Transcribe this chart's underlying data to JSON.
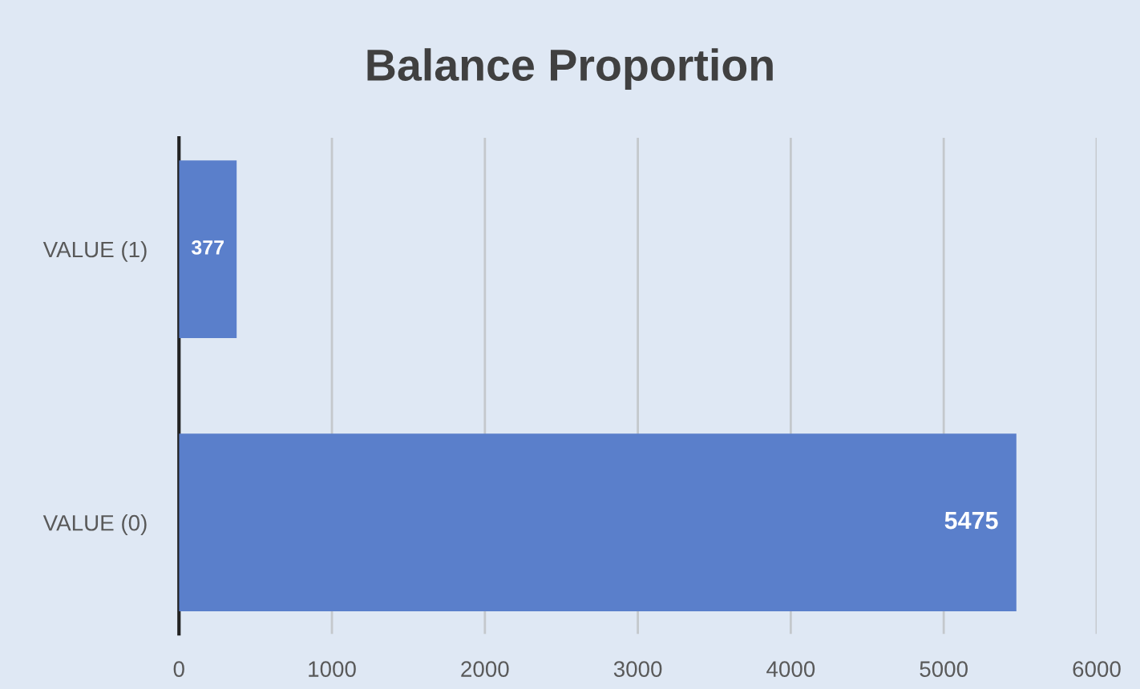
{
  "chart_data": {
    "type": "bar",
    "orientation": "horizontal",
    "title": "Balance Proportion",
    "categories": [
      "VALUE (1)",
      "VALUE (0)"
    ],
    "values": [
      377,
      5475
    ],
    "color": "#5a7fcb",
    "xlim": [
      0,
      6000
    ],
    "xticks": [
      0,
      1000,
      2000,
      3000,
      4000,
      5000,
      6000
    ],
    "grid": "x",
    "data_labels": true
  }
}
